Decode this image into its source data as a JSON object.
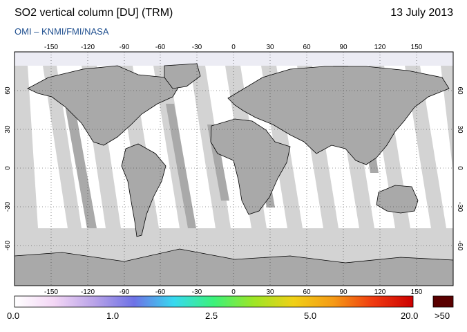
{
  "title": "SO2 vertical column [DU] (TRM)",
  "date": "13 July 2013",
  "subtitle": "OMI  –  KNMI/FMI/NASA",
  "map": {
    "lon_ticks": [
      "-150",
      "-120",
      "-90",
      "-60",
      "-30",
      "0",
      "30",
      "60",
      "90",
      "120",
      "150"
    ],
    "lat_ticks": [
      "60",
      "30",
      "0",
      "-30",
      "-60"
    ],
    "background_colors": {
      "swath": "#d3d3d3",
      "gap": "#ffffff",
      "land": "#a9a9a9",
      "coast": "#000000"
    }
  },
  "colorbar": {
    "labels": [
      "0.0",
      "1.0",
      "2.5",
      "5.0",
      "20.0",
      ">50"
    ],
    "stops": [
      "#ffffff",
      "#f3d6f5",
      "#b9a3e8",
      "#6e72e6",
      "#37d9f0",
      "#3cf27a",
      "#9de626",
      "#f0d016",
      "#f59a16",
      "#f03a10",
      "#cc0000"
    ],
    "overflow_color": "#5a0000"
  }
}
